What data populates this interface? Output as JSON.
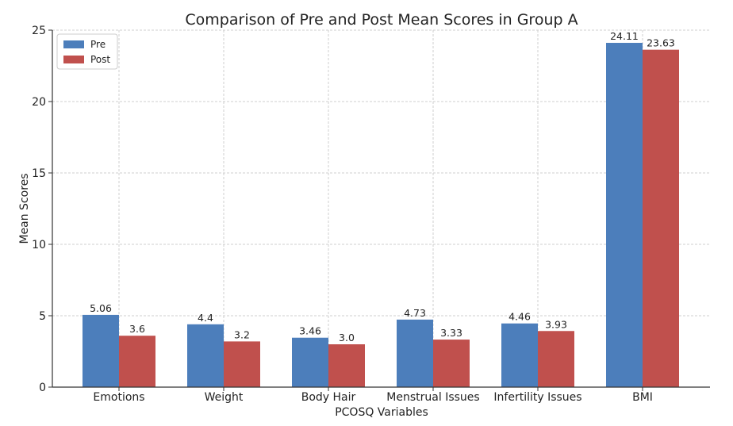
{
  "chart_data": {
    "type": "bar",
    "title": "Comparison of Pre and Post Mean Scores in Group A",
    "xlabel": "PCOSQ Variables",
    "ylabel": "Mean Scores",
    "categories": [
      "Emotions",
      "Weight",
      "Body Hair",
      "Menstrual Issues",
      "Infertility Issues",
      "BMI"
    ],
    "series": [
      {
        "name": "Pre",
        "values": [
          5.06,
          4.4,
          3.46,
          4.73,
          4.46,
          24.11
        ],
        "labels": [
          "5.06",
          "4.4",
          "3.46",
          "4.73",
          "4.46",
          "24.11"
        ],
        "color": "#4c7ebb"
      },
      {
        "name": "Post",
        "values": [
          3.6,
          3.2,
          3.0,
          3.33,
          3.93,
          23.63
        ],
        "labels": [
          "3.6",
          "3.2",
          "3.0",
          "3.33",
          "3.93",
          "23.63"
        ],
        "color": "#c0504d"
      }
    ],
    "ylim": [
      0,
      25
    ],
    "yticks": [
      0,
      5,
      10,
      15,
      20,
      25
    ],
    "grid": true,
    "legend_position": "top-left"
  }
}
